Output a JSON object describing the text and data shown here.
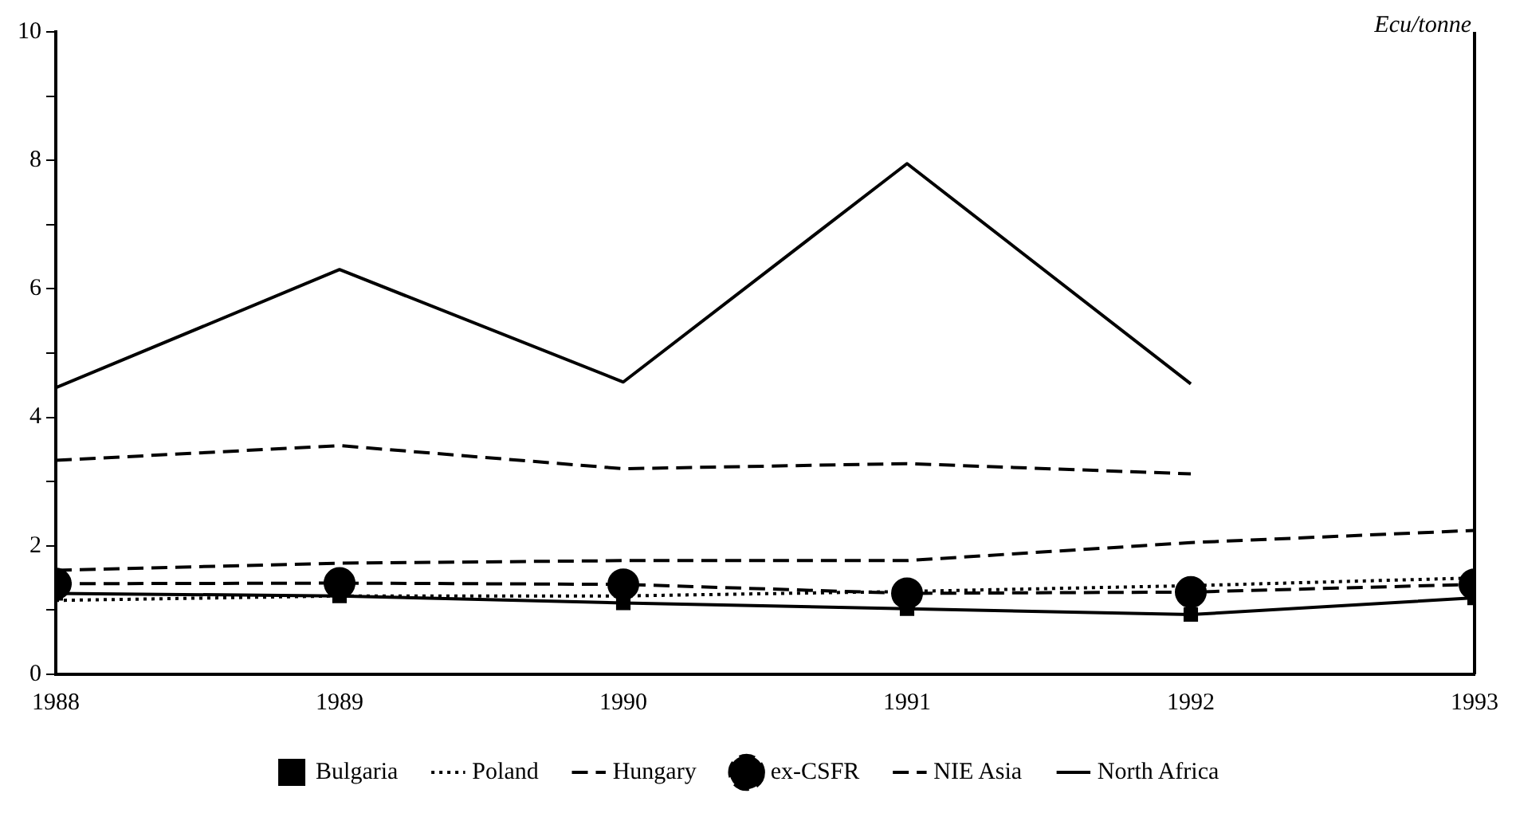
{
  "chart_data": {
    "type": "line",
    "ylabel": "Ecu/tonne",
    "x": [
      1988,
      1989,
      1990,
      1991,
      1992,
      1993
    ],
    "xlim": [
      1988,
      1993
    ],
    "xticks": [
      1988,
      1989,
      1990,
      1991,
      1992,
      1993
    ],
    "ylim": [
      0,
      10
    ],
    "yticks": [
      0,
      {
        "value": 1,
        "label": null
      },
      2,
      {
        "value": 3,
        "label": null
      },
      4,
      {
        "value": 5,
        "label": null
      },
      6,
      {
        "value": 7,
        "label": null
      },
      8,
      {
        "value": 9,
        "label": null
      },
      10
    ],
    "grid": false,
    "legend": "bottom",
    "series": [
      {
        "name": "Bulgaria",
        "color": "#000000",
        "marker": "square",
        "line_style": "solid",
        "values": [
          1.26,
          1.22,
          1.11,
          1.02,
          0.93,
          1.19
        ]
      },
      {
        "name": "Poland",
        "color": "#000000",
        "marker": "none",
        "line_style": "dotted",
        "values": [
          1.15,
          1.22,
          1.22,
          1.29,
          1.38,
          1.5
        ]
      },
      {
        "name": "Hungary",
        "color": "#000000",
        "marker": "none",
        "line_style": "dashed",
        "values": [
          3.33,
          3.56,
          3.2,
          3.28,
          3.12,
          null
        ]
      },
      {
        "name": "ex-CSFR",
        "color": "#000000",
        "marker": "circle",
        "line_style": "dashed",
        "values": [
          1.41,
          1.42,
          1.4,
          1.26,
          1.28,
          1.4
        ]
      },
      {
        "name": "NIE Asia",
        "color": "#000000",
        "marker": "none",
        "line_style": "dashed",
        "values": [
          1.62,
          1.73,
          1.77,
          1.77,
          2.05,
          2.24
        ]
      },
      {
        "name": "North Africa",
        "color": "#000000",
        "marker": "none",
        "line_style": "solid",
        "values": [
          4.46,
          6.3,
          4.55,
          7.95,
          4.52,
          null
        ]
      }
    ]
  }
}
